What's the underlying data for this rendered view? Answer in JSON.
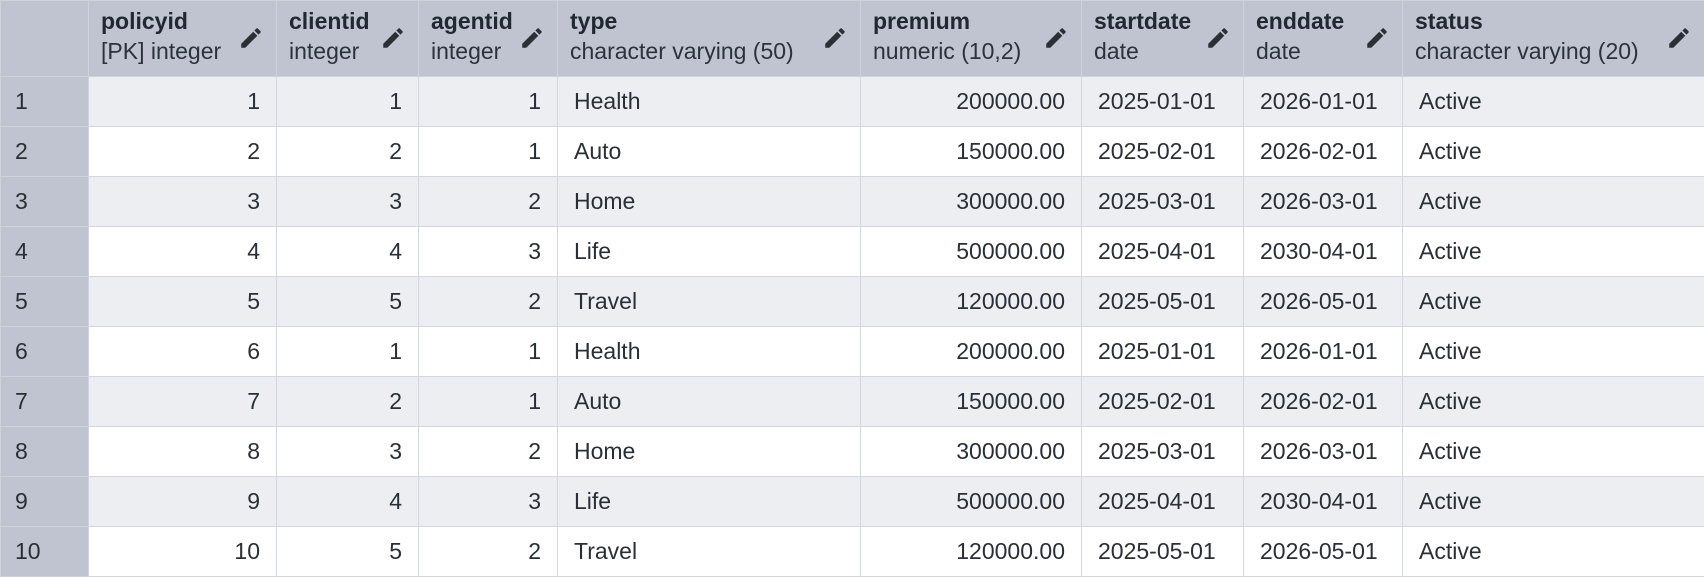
{
  "columns": [
    {
      "name": "policyid",
      "type": "[PK] integer"
    },
    {
      "name": "clientid",
      "type": "integer"
    },
    {
      "name": "agentid",
      "type": "integer"
    },
    {
      "name": "type",
      "type": "character varying (50)"
    },
    {
      "name": "premium",
      "type": "numeric (10,2)"
    },
    {
      "name": "startdate",
      "type": "date"
    },
    {
      "name": "enddate",
      "type": "date"
    },
    {
      "name": "status",
      "type": "character varying (20)"
    }
  ],
  "rows": [
    {
      "n": "1",
      "policyid": "1",
      "clientid": "1",
      "agentid": "1",
      "type": "Health",
      "premium": "200000.00",
      "startdate": "2025-01-01",
      "enddate": "2026-01-01",
      "status": "Active"
    },
    {
      "n": "2",
      "policyid": "2",
      "clientid": "2",
      "agentid": "1",
      "type": "Auto",
      "premium": "150000.00",
      "startdate": "2025-02-01",
      "enddate": "2026-02-01",
      "status": "Active"
    },
    {
      "n": "3",
      "policyid": "3",
      "clientid": "3",
      "agentid": "2",
      "type": "Home",
      "premium": "300000.00",
      "startdate": "2025-03-01",
      "enddate": "2026-03-01",
      "status": "Active"
    },
    {
      "n": "4",
      "policyid": "4",
      "clientid": "4",
      "agentid": "3",
      "type": "Life",
      "premium": "500000.00",
      "startdate": "2025-04-01",
      "enddate": "2030-04-01",
      "status": "Active"
    },
    {
      "n": "5",
      "policyid": "5",
      "clientid": "5",
      "agentid": "2",
      "type": "Travel",
      "premium": "120000.00",
      "startdate": "2025-05-01",
      "enddate": "2026-05-01",
      "status": "Active"
    },
    {
      "n": "6",
      "policyid": "6",
      "clientid": "1",
      "agentid": "1",
      "type": "Health",
      "premium": "200000.00",
      "startdate": "2025-01-01",
      "enddate": "2026-01-01",
      "status": "Active"
    },
    {
      "n": "7",
      "policyid": "7",
      "clientid": "2",
      "agentid": "1",
      "type": "Auto",
      "premium": "150000.00",
      "startdate": "2025-02-01",
      "enddate": "2026-02-01",
      "status": "Active"
    },
    {
      "n": "8",
      "policyid": "8",
      "clientid": "3",
      "agentid": "2",
      "type": "Home",
      "premium": "300000.00",
      "startdate": "2025-03-01",
      "enddate": "2026-03-01",
      "status": "Active"
    },
    {
      "n": "9",
      "policyid": "9",
      "clientid": "4",
      "agentid": "3",
      "type": "Life",
      "premium": "500000.00",
      "startdate": "2025-04-01",
      "enddate": "2030-04-01",
      "status": "Active"
    },
    {
      "n": "10",
      "policyid": "10",
      "clientid": "5",
      "agentid": "2",
      "type": "Travel",
      "premium": "120000.00",
      "startdate": "2025-05-01",
      "enddate": "2026-05-01",
      "status": "Active"
    }
  ],
  "icons": {
    "edit": "pencil-icon"
  },
  "colors": {
    "header_bg": "#bfc4d0",
    "row_alt": "#eceef2",
    "row": "#ffffff",
    "text": "#2a2f36"
  }
}
